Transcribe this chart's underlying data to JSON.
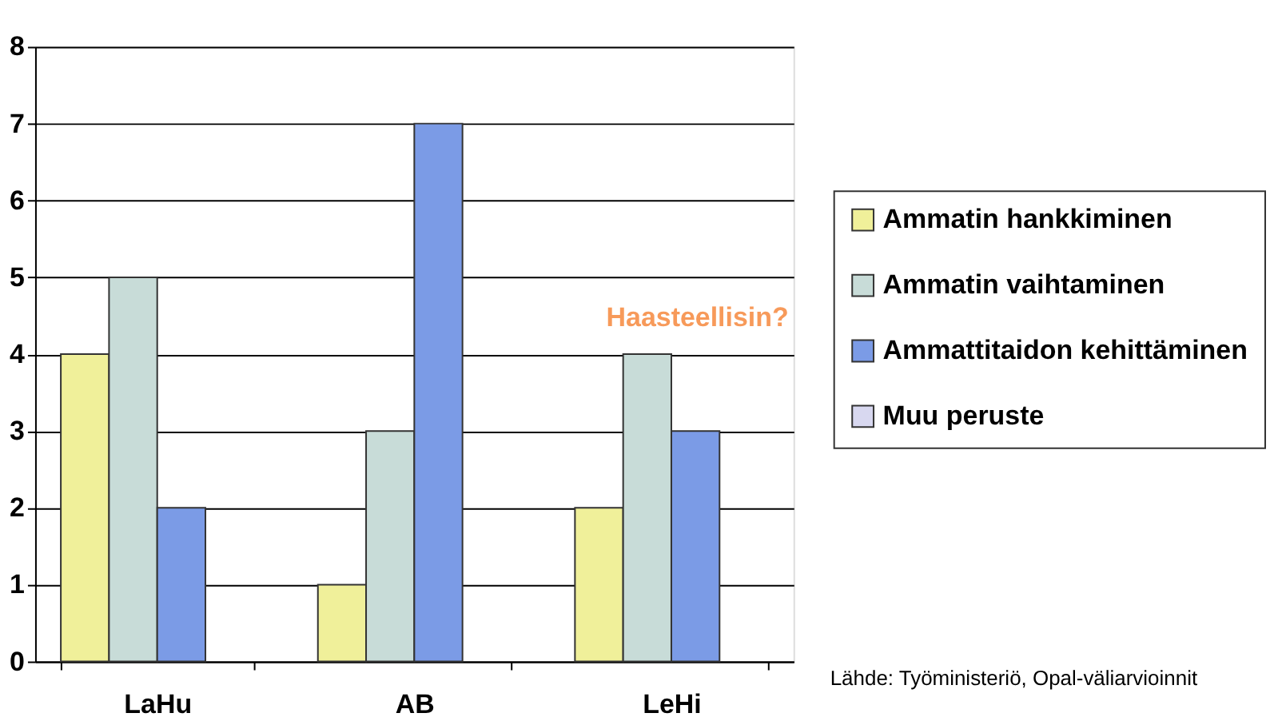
{
  "chart_data": {
    "type": "bar",
    "categories": [
      "LaHu",
      "AB",
      "LeHi"
    ],
    "series": [
      {
        "name": "Ammatin hankkiminen",
        "color": "#f0f09a",
        "values": [
          4,
          1,
          2
        ]
      },
      {
        "name": "Ammatin vaihtaminen",
        "color": "#c8dcd8",
        "values": [
          5,
          3,
          4
        ]
      },
      {
        "name": "Ammattitaidon kehittäminen",
        "color": "#7b9be6",
        "values": [
          2,
          7,
          3
        ]
      },
      {
        "name": "Muu peruste",
        "color": "#d8d8f0",
        "values": [
          0,
          0,
          0
        ]
      }
    ],
    "ylim": [
      0,
      8
    ],
    "yticks": [
      0,
      1,
      2,
      3,
      4,
      5,
      6,
      7,
      8
    ],
    "grid": "y",
    "legend": "right",
    "annotations": [
      "Haasteellisin?",
      "Lähde: Työministeriö, Opal-väliarvioinnit"
    ]
  }
}
